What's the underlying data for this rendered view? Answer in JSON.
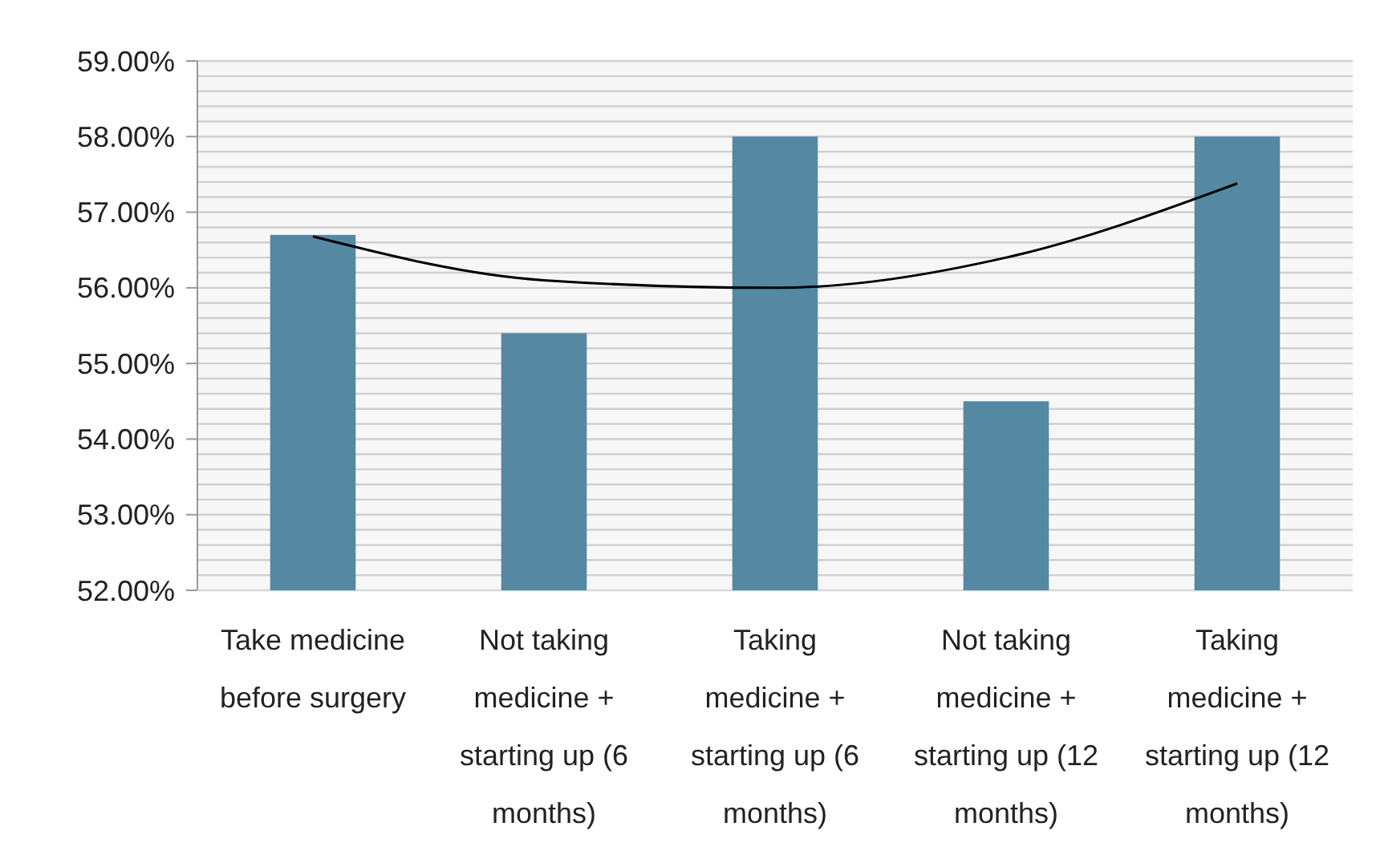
{
  "chart_data": {
    "type": "bar",
    "categories": [
      "Take medicine before surgery",
      "Not taking medicine + starting up (6 months)",
      "Taking medicine + starting up (6 months)",
      "Not taking medicine + starting up (12 months)",
      "Taking medicine + starting up (12 months)"
    ],
    "series": [
      {
        "color": "#5588a3",
        "values": [
          56.7,
          55.4,
          58.0,
          54.5,
          58.0
        ]
      },
      {
        "type": "line",
        "color": "#000000",
        "values": [
          56.68,
          56.1,
          56.0,
          56.4,
          57.38
        ]
      }
    ],
    "ylim": [
      52,
      59
    ],
    "yticks": [
      {
        "value": 52,
        "label": "52.00%"
      },
      {
        "value": 52.2,
        "label": null
      },
      {
        "value": 52.4,
        "label": null
      },
      {
        "value": 52.6,
        "label": null
      },
      {
        "value": 52.8,
        "label": null
      },
      {
        "value": 53,
        "label": "53.00%"
      },
      {
        "value": 53.2,
        "label": null
      },
      {
        "value": 53.4,
        "label": null
      },
      {
        "value": 53.6,
        "label": null
      },
      {
        "value": 53.8,
        "label": null
      },
      {
        "value": 54,
        "label": "54.00%"
      },
      {
        "value": 54.2,
        "label": null
      },
      {
        "value": 54.4,
        "label": null
      },
      {
        "value": 54.6,
        "label": null
      },
      {
        "value": 54.8,
        "label": null
      },
      {
        "value": 55,
        "label": "55.00%"
      },
      {
        "value": 55.2,
        "label": null
      },
      {
        "value": 55.4,
        "label": null
      },
      {
        "value": 55.6,
        "label": null
      },
      {
        "value": 55.8,
        "label": null
      },
      {
        "value": 56,
        "label": "56.00%"
      },
      {
        "value": 56.2,
        "label": null
      },
      {
        "value": 56.4,
        "label": null
      },
      {
        "value": 56.6,
        "label": null
      },
      {
        "value": 56.8,
        "label": null
      },
      {
        "value": 57,
        "label": "57.00%"
      },
      {
        "value": 57.2,
        "label": null
      },
      {
        "value": 57.4,
        "label": null
      },
      {
        "value": 57.6,
        "label": null
      },
      {
        "value": 57.8,
        "label": null
      },
      {
        "value": 58,
        "label": "58.00%"
      },
      {
        "value": 58.2,
        "label": null
      },
      {
        "value": 58.4,
        "label": null
      },
      {
        "value": 58.6,
        "label": null
      },
      {
        "value": 58.8,
        "label": null
      },
      {
        "value": 59,
        "label": "59.00%"
      }
    ],
    "grid": "y",
    "marker": "none",
    "line_style": "solid"
  }
}
